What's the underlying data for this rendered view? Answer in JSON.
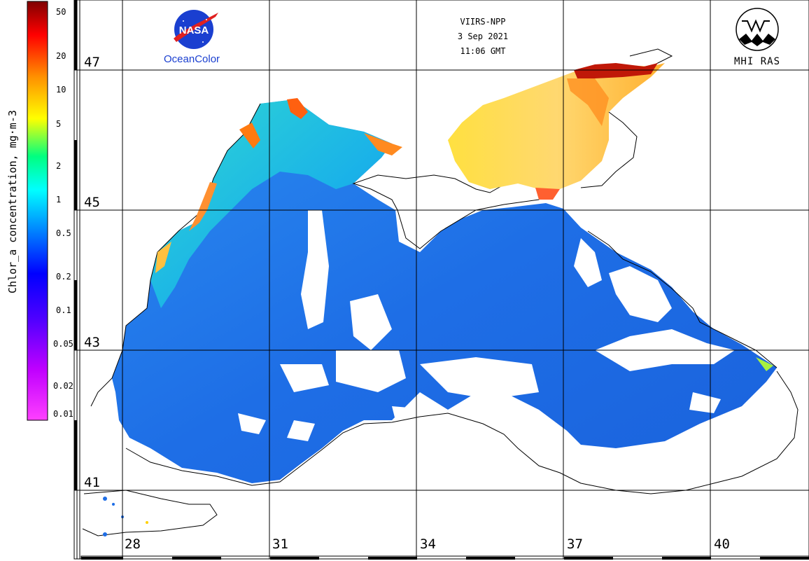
{
  "header": {
    "sensor": "VIIRS-NPP",
    "date": "3 Sep 2021",
    "time": "11:06 GMT"
  },
  "logos": {
    "nasa_badge_text": "NASA",
    "nasa_caption": "OceanColor",
    "mhi_caption": "MHI RAS"
  },
  "colorbar": {
    "title": "Chlor_a concentration, mg·m-3",
    "ticks": [
      "50",
      "20",
      "10",
      "5",
      "2",
      "1",
      "0.5",
      "0.2",
      "0.1",
      "0.05",
      "0.02",
      "0.01"
    ],
    "tick_values": [
      50,
      20,
      10,
      5,
      2,
      1,
      0.5,
      0.2,
      0.1,
      0.05,
      0.02,
      0.01
    ],
    "range": [
      0.01,
      60
    ],
    "scale": "log",
    "colors_low_to_high": [
      "#ff40ff",
      "#a000ff",
      "#0000ff",
      "#0090ff",
      "#00ffff",
      "#00ff80",
      "#ffff00",
      "#ff9000",
      "#ff0000",
      "#800000"
    ]
  },
  "grid": {
    "latitudes": [
      "47",
      "45",
      "43",
      "41"
    ],
    "lat_values": [
      47,
      45,
      43,
      41
    ],
    "longitudes": [
      "28",
      "31",
      "34",
      "37",
      "40"
    ],
    "lon_values": [
      28,
      31,
      34,
      37,
      40
    ]
  },
  "colors": {
    "land": "#ffffff",
    "coast": "#000000",
    "open_sea": "#1e6ee6",
    "shelf_water": "#19c2e0",
    "azov_sea": "#ffd84a",
    "coastal_bloom": "#ff5a10",
    "river_mouth": "#a01000"
  }
}
